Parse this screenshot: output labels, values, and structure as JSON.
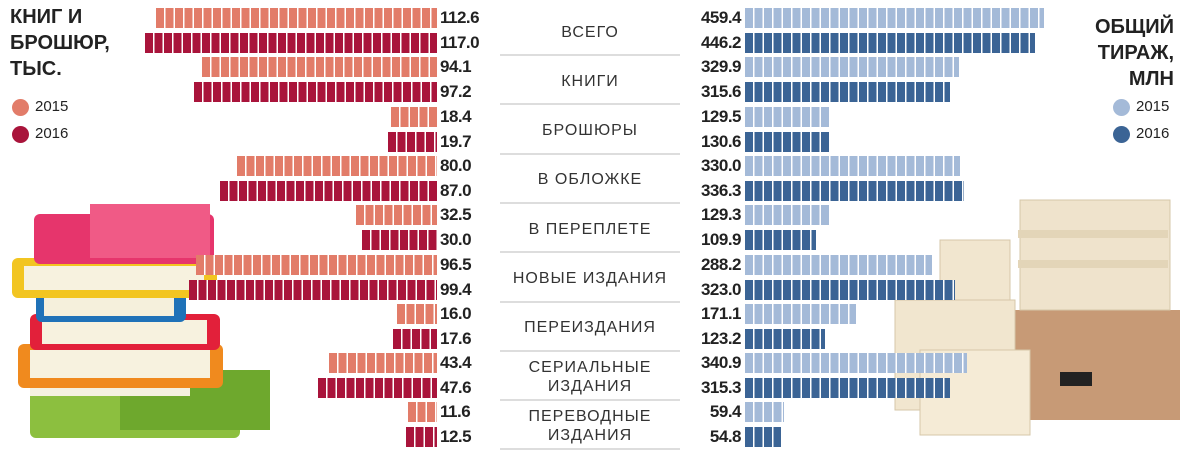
{
  "chart_data": {
    "type": "bar",
    "categories": [
      "ВСЕГО",
      "КНИГИ",
      "БРОШЮРЫ",
      "В ОБЛОЖКЕ",
      "В ПЕРЕПЛЕТЕ",
      "НОВЫЕ ИЗДАНИЯ",
      "ПЕРЕИЗДАНИЯ",
      "СЕРИАЛЬНЫЕ ИЗДАНИЯ",
      "ПЕРЕВОДНЫЕ ИЗДАНИЯ"
    ],
    "left": {
      "title": "КНИГ И БРОШЮР, ТЫС.",
      "series": [
        {
          "name": "2015",
          "color": "#e27c69",
          "values": [
            112.6,
            94.1,
            18.4,
            80.0,
            32.5,
            96.5,
            16.0,
            43.4,
            11.6
          ],
          "value_labels": [
            "112.6",
            "94.1",
            "18.4",
            "80.0",
            "32.5",
            "96.5",
            "16.0",
            "43.4",
            "11.6"
          ]
        },
        {
          "name": "2016",
          "color": "#a9143b",
          "values": [
            117.0,
            97.2,
            19.7,
            87.0,
            30.0,
            99.4,
            17.6,
            47.6,
            12.5
          ],
          "value_labels": [
            "117.0",
            "97.2",
            "19.7",
            "87.0",
            "30.0",
            "99.4",
            "17.6",
            "47.6",
            "12.5"
          ]
        }
      ]
    },
    "right": {
      "title": "ОБЩИЙ ТИРАЖ, МЛН",
      "series": [
        {
          "name": "2015",
          "color": "#a4bad8",
          "values": [
            459.4,
            329.9,
            129.5,
            330.0,
            129.3,
            288.2,
            171.1,
            340.9,
            59.4
          ],
          "value_labels": [
            "459.4",
            "329.9",
            "129.5",
            "330.0",
            "129.3",
            "288.2",
            "171.1",
            "340.9",
            "59.4"
          ]
        },
        {
          "name": "2016",
          "color": "#3b6495",
          "values": [
            446.2,
            315.6,
            130.6,
            336.3,
            109.9,
            323.0,
            123.2,
            315.3,
            54.8
          ],
          "value_labels": [
            "446.2",
            "315.6",
            "130.6",
            "336.3",
            "109.9",
            "323.0",
            "123.2",
            "315.3",
            "54.8"
          ]
        }
      ]
    }
  }
}
